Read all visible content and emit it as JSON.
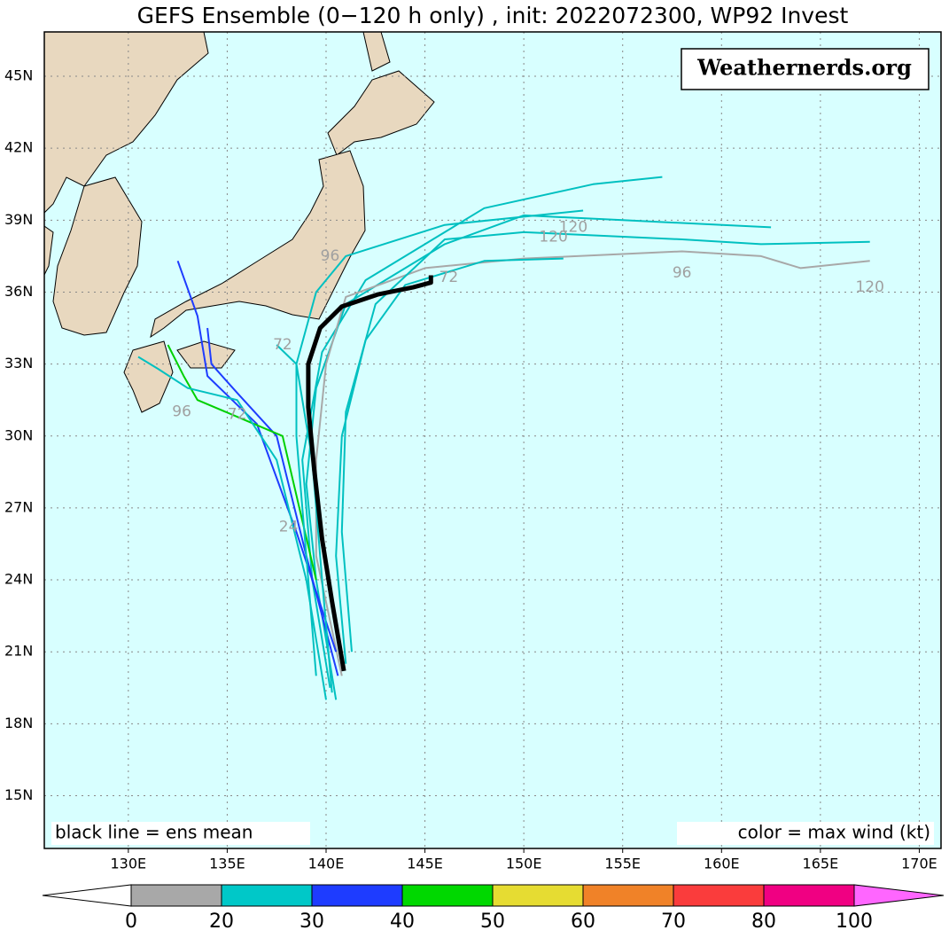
{
  "map": {
    "title": "GEFS Ensemble (0−120 h only) , init: 2022072300, WP92 Invest",
    "watermark": "Weathernerds.org",
    "note_left": "black line = ens mean",
    "note_right": "color = max wind (kt)",
    "lonlim": [
      125.75,
      171.1
    ],
    "latlim": [
      12.8,
      46.85
    ],
    "lonticks": [
      {
        "value": 130,
        "label": "130E"
      },
      {
        "value": 135,
        "label": "135E"
      },
      {
        "value": 140,
        "label": "140E"
      },
      {
        "value": 145,
        "label": "145E"
      },
      {
        "value": 150,
        "label": "150E"
      },
      {
        "value": 155,
        "label": "155E"
      },
      {
        "value": 160,
        "label": "160E"
      },
      {
        "value": 165,
        "label": "165E"
      },
      {
        "value": 170,
        "label": "170E"
      }
    ],
    "latticks": [
      {
        "value": 15,
        "label": "15N"
      },
      {
        "value": 18,
        "label": "18N"
      },
      {
        "value": 21,
        "label": "21N"
      },
      {
        "value": 24,
        "label": "24N"
      },
      {
        "value": 27,
        "label": "27N"
      },
      {
        "value": 30,
        "label": "30N"
      },
      {
        "value": 33,
        "label": "33N"
      },
      {
        "value": 36,
        "label": "36N"
      },
      {
        "value": 39,
        "label": "39N"
      },
      {
        "value": 42,
        "label": "42N"
      },
      {
        "value": 45,
        "label": "45N"
      }
    ],
    "grid": true,
    "mean_track": {
      "color": "#000000",
      "lon": [
        140.9,
        140.3,
        139.8,
        139.4,
        139.1,
        139.1,
        139.7,
        140.8,
        142.6,
        144.4,
        145.3,
        145.3
      ],
      "lat": [
        20.2,
        23.1,
        25.7,
        28.6,
        31.2,
        33.0,
        34.5,
        35.4,
        35.9,
        36.2,
        36.4,
        36.7
      ]
    },
    "tracks": [
      {
        "color": "#00c0c0",
        "lon": [
          140.5,
          139.5,
          139,
          139.5,
          141,
          146,
          150,
          155,
          162.5
        ],
        "lat": [
          19,
          24,
          28,
          32,
          35.5,
          38,
          39.2,
          39,
          38.7
        ]
      },
      {
        "color": "#00c0c0",
        "lon": [
          140.2,
          139.3,
          138.8,
          139.8,
          142,
          148,
          153.5,
          157
        ],
        "lat": [
          19.5,
          24,
          29,
          33.5,
          36.5,
          39.5,
          40.5,
          40.8
        ]
      },
      {
        "color": "#a8a8a8",
        "lon": [
          140.8,
          139.5,
          139.5,
          140,
          141,
          145,
          150,
          158,
          162,
          164,
          167.5
        ],
        "lat": [
          20,
          25,
          29,
          33,
          35.8,
          37,
          37.4,
          37.7,
          37.5,
          37,
          37.3
        ]
      },
      {
        "color": "#1e3cff",
        "lon": [
          140.6,
          139,
          137.5,
          135.5,
          134.2,
          134
        ],
        "lat": [
          20,
          25,
          30,
          31.8,
          33,
          34.5
        ]
      },
      {
        "color": "#1e3cff",
        "lon": [
          140.5,
          138.5,
          136.5,
          134,
          133.5,
          132.5
        ],
        "lat": [
          21,
          26,
          30.5,
          32.5,
          35,
          37.3
        ]
      },
      {
        "color": "#00d000",
        "lon": [
          139.5,
          137.8,
          135.5,
          133.5,
          132.8,
          132
        ],
        "lat": [
          24,
          30,
          30.8,
          31.5,
          32.5,
          33.8
        ]
      },
      {
        "color": "#00c0c0",
        "lon": [
          140,
          139,
          137.5,
          135.5,
          133,
          131.5,
          130.5
        ],
        "lat": [
          19,
          24,
          29,
          31.5,
          32,
          32.8,
          33.3
        ]
      },
      {
        "color": "#00c0c0",
        "lon": [
          141,
          140.5,
          140.8,
          142,
          144,
          148,
          152
        ],
        "lat": [
          20.5,
          25,
          30,
          34,
          36.3,
          37.3,
          37.4
        ]
      },
      {
        "color": "#00c0c0",
        "lon": [
          141.3,
          140.8,
          141,
          142.5,
          146,
          150,
          158,
          162,
          167.5
        ],
        "lat": [
          21,
          26,
          31,
          35.5,
          38.2,
          38.5,
          38.2,
          38,
          38.1
        ]
      },
      {
        "color": "#00c0c0",
        "lon": [
          139.5,
          139,
          138.5,
          138.5,
          139.5,
          141,
          146,
          153
        ],
        "lat": [
          20,
          25,
          30,
          33,
          36,
          37.5,
          38.8,
          39.4
        ]
      },
      {
        "color": "#00c0c0",
        "lon": [
          140.3,
          139.8,
          139.3,
          138.5,
          137.5
        ],
        "lat": [
          19.3,
          24,
          29,
          33,
          33.8
        ]
      }
    ],
    "hour_labels": [
      {
        "text": "96",
        "lon": 140.2,
        "lat": 37.5
      },
      {
        "text": "72",
        "lon": 146.2,
        "lat": 36.6
      },
      {
        "text": "120",
        "lon": 151.5,
        "lat": 38.3
      },
      {
        "text": "120",
        "lon": 152.5,
        "lat": 38.7
      },
      {
        "text": "96",
        "lon": 158,
        "lat": 36.8
      },
      {
        "text": "120",
        "lon": 167.5,
        "lat": 36.2
      },
      {
        "text": "96",
        "lon": 132.7,
        "lat": 31
      },
      {
        "text": "72",
        "lon": 135.5,
        "lat": 30.9
      },
      {
        "text": "24",
        "lon": 138.1,
        "lat": 26.2
      },
      {
        "text": "72",
        "lon": 137.8,
        "lat": 33.8
      }
    ],
    "colorbar": {
      "bounds": [
        0,
        20,
        30,
        40,
        50,
        60,
        70,
        80,
        100
      ],
      "colors": [
        "#a8a8a8",
        "#00c8c8",
        "#1e3cff",
        "#00d800",
        "#e6dc32",
        "#f08228",
        "#fa3c3c",
        "#f00082"
      ],
      "under_color": "#ffffff",
      "over_color": "#ff66ff"
    }
  }
}
